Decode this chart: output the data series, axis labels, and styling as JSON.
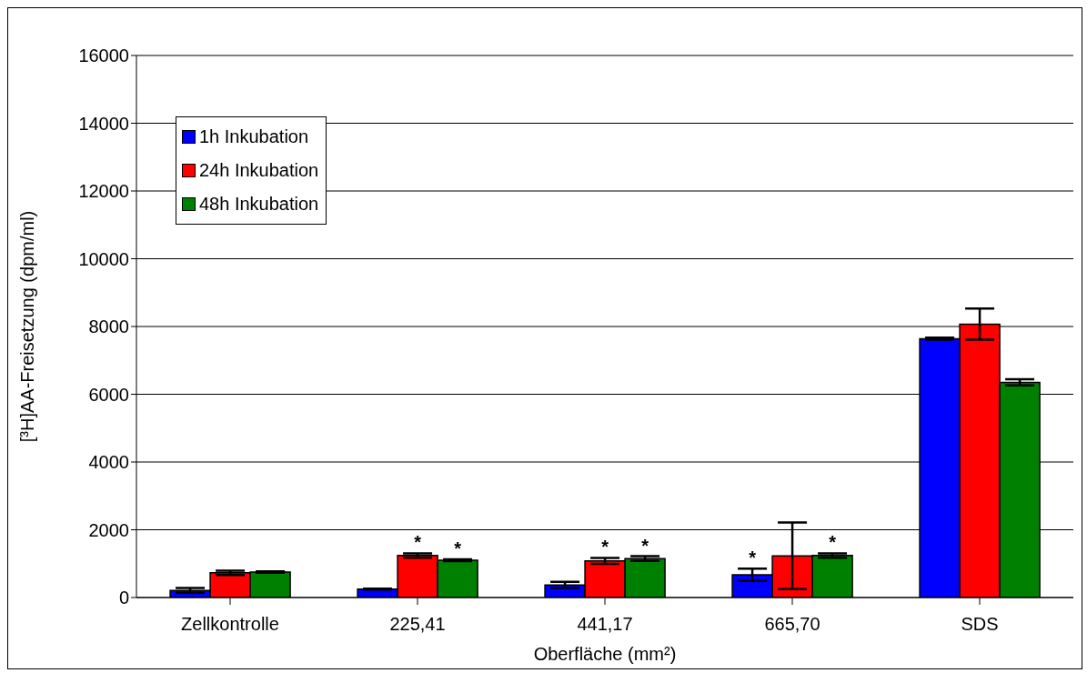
{
  "chart_data": {
    "type": "bar",
    "xlabel": "Oberfläche (mm²)",
    "ylabel": "[³H]AA-Freisetzung (dpm/ml)",
    "categories": [
      "Zellkontrolle",
      "225,41",
      "441,17",
      "665,70",
      "SDS"
    ],
    "series": [
      {
        "name": "1h Inkubation",
        "color": "#0000ff",
        "values": [
          210,
          250,
          370,
          670,
          7640
        ],
        "errors": [
          70,
          15,
          90,
          180,
          30
        ],
        "value_labels": [
          null,
          null,
          null,
          "*",
          null
        ]
      },
      {
        "name": "24h Inkubation",
        "color": "#ff0000",
        "values": [
          730,
          1240,
          1080,
          1230,
          8070
        ],
        "errors": [
          65,
          65,
          90,
          985,
          460
        ],
        "value_labels": [
          null,
          "*",
          "*",
          null,
          null
        ]
      },
      {
        "name": "48h Inkubation",
        "color": "#008000",
        "values": [
          750,
          1100,
          1150,
          1240,
          6350
        ],
        "errors": [
          20,
          25,
          70,
          65,
          90
        ],
        "value_labels": [
          null,
          "*",
          "*",
          "*",
          null
        ]
      }
    ],
    "ylim": [
      0,
      16000
    ],
    "yticks": [
      0,
      2000,
      4000,
      6000,
      8000,
      10000,
      12000,
      14000,
      16000
    ],
    "grid": "y",
    "legend": "top left"
  }
}
